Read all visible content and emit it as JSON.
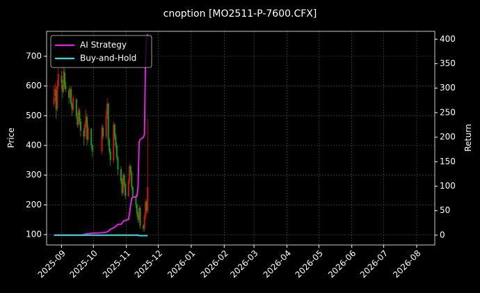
{
  "chart_data": {
    "type": "candlestick",
    "title": "cnoption [MO2511-P-7600.CFX]",
    "ylabel": "Price",
    "y2label": "Return",
    "x": [
      "2025-08-25",
      "2025-08-26",
      "2025-08-27",
      "2025-08-28",
      "2025-08-29",
      "2025-09-01",
      "2025-09-02",
      "2025-09-03",
      "2025-09-04",
      "2025-09-05",
      "2025-09-08",
      "2025-09-09",
      "2025-09-10",
      "2025-09-11",
      "2025-09-12",
      "2025-09-15",
      "2025-09-16",
      "2025-09-17",
      "2025-09-18",
      "2025-09-19",
      "2025-09-22",
      "2025-09-23",
      "2025-09-24",
      "2025-09-25",
      "2025-09-26",
      "2025-09-29",
      "2025-09-30",
      "2025-10-09",
      "2025-10-10",
      "2025-10-13",
      "2025-10-14",
      "2025-10-15",
      "2025-10-16",
      "2025-10-17",
      "2025-10-20",
      "2025-10-21",
      "2025-10-22",
      "2025-10-23",
      "2025-10-24",
      "2025-10-27",
      "2025-10-28",
      "2025-10-29",
      "2025-10-30",
      "2025-10-31",
      "2025-11-03",
      "2025-11-04",
      "2025-11-05",
      "2025-11-06",
      "2025-11-07",
      "2025-11-10",
      "2025-11-11",
      "2025-11-12",
      "2025-11-13",
      "2025-11-14",
      "2025-11-17",
      "2025-11-18",
      "2025-11-19",
      "2025-11-20",
      "2025-11-21"
    ],
    "open": [
      540,
      565,
      585,
      525,
      600,
      635,
      605,
      585,
      645,
      600,
      585,
      560,
      590,
      540,
      520,
      555,
      500,
      470,
      515,
      480,
      450,
      430,
      470,
      495,
      420,
      455,
      400,
      380,
      460,
      430,
      500,
      540,
      420,
      380,
      350,
      470,
      430,
      400,
      360,
      320,
      280,
      240,
      300,
      270,
      230,
      280,
      330,
      310,
      260,
      230,
      200,
      170,
      150,
      190,
      130,
      120,
      160,
      210,
      180
    ],
    "high": [
      600,
      610,
      600,
      620,
      660,
      650,
      620,
      680,
      660,
      615,
      595,
      600,
      600,
      545,
      570,
      560,
      510,
      530,
      525,
      490,
      460,
      480,
      520,
      505,
      470,
      460,
      405,
      470,
      470,
      520,
      560,
      545,
      425,
      390,
      480,
      475,
      440,
      410,
      365,
      330,
      290,
      310,
      305,
      275,
      290,
      340,
      335,
      315,
      265,
      235,
      205,
      175,
      200,
      195,
      135,
      170,
      220,
      215,
      490
    ],
    "low": [
      530,
      550,
      490,
      515,
      590,
      590,
      560,
      575,
      590,
      580,
      540,
      550,
      530,
      500,
      510,
      490,
      460,
      460,
      470,
      430,
      400,
      420,
      460,
      400,
      410,
      390,
      360,
      370,
      420,
      420,
      490,
      400,
      370,
      330,
      340,
      420,
      390,
      350,
      300,
      270,
      230,
      235,
      260,
      220,
      225,
      270,
      300,
      250,
      220,
      190,
      160,
      140,
      140,
      120,
      110,
      110,
      150,
      170,
      170
    ],
    "close": [
      560,
      590,
      520,
      600,
      640,
      610,
      580,
      650,
      600,
      590,
      560,
      590,
      540,
      520,
      560,
      500,
      470,
      520,
      480,
      450,
      430,
      470,
      500,
      420,
      460,
      400,
      380,
      460,
      430,
      500,
      540,
      420,
      380,
      350,
      470,
      430,
      400,
      360,
      320,
      280,
      240,
      300,
      270,
      230,
      280,
      330,
      310,
      260,
      230,
      200,
      170,
      150,
      190,
      130,
      120,
      160,
      210,
      180,
      260
    ],
    "up_color": "#e01010",
    "down_color": "#10a010",
    "series": [
      {
        "name": "AI Strategy",
        "color": "#e61ee6",
        "axis": "y2",
        "values": [
          0,
          0,
          0,
          0,
          0,
          0,
          0,
          0,
          0,
          0,
          0,
          0,
          0,
          0,
          0,
          0,
          0,
          0,
          0,
          0,
          1,
          2,
          2,
          3,
          3,
          4,
          4,
          5,
          5,
          6,
          7,
          8,
          10,
          12,
          15,
          16,
          18,
          20,
          22,
          22,
          25,
          28,
          30,
          30,
          32,
          45,
          60,
          75,
          78,
          78,
          80,
          100,
          190,
          195,
          200,
          205,
          360,
          400,
          410
        ]
      },
      {
        "name": "Buy-and-Hold",
        "color": "#22e0e0",
        "axis": "y2",
        "values": [
          0,
          0,
          0,
          0,
          0,
          0,
          0,
          0,
          0,
          0,
          0,
          0,
          0,
          0,
          0,
          0,
          0,
          0,
          0,
          0,
          0,
          0,
          0,
          0,
          0,
          0,
          0,
          0,
          0,
          0,
          0,
          0,
          0,
          0,
          0,
          0,
          0,
          0,
          0,
          0,
          0,
          0,
          0,
          0,
          0,
          0,
          0,
          0,
          0,
          0,
          0,
          0,
          -1,
          -1,
          -1,
          -1,
          -1,
          -1,
          -1
        ]
      }
    ],
    "xlim": [
      "2025-08-18",
      "2026-08-18"
    ],
    "xticks": [
      "2025-09",
      "2025-10",
      "2025-11",
      "2025-12",
      "2026-01",
      "2026-02",
      "2026-03",
      "2026-04",
      "2026-05",
      "2026-06",
      "2026-07",
      "2026-08"
    ],
    "ylim": [
      65,
      784
    ],
    "yticks": [
      100,
      200,
      300,
      400,
      500,
      600,
      700
    ],
    "y2lim": [
      -20,
      416
    ],
    "y2ticks": [
      0,
      50,
      100,
      150,
      200,
      250,
      300,
      350,
      400
    ],
    "grid": true,
    "legend": "upper left"
  }
}
